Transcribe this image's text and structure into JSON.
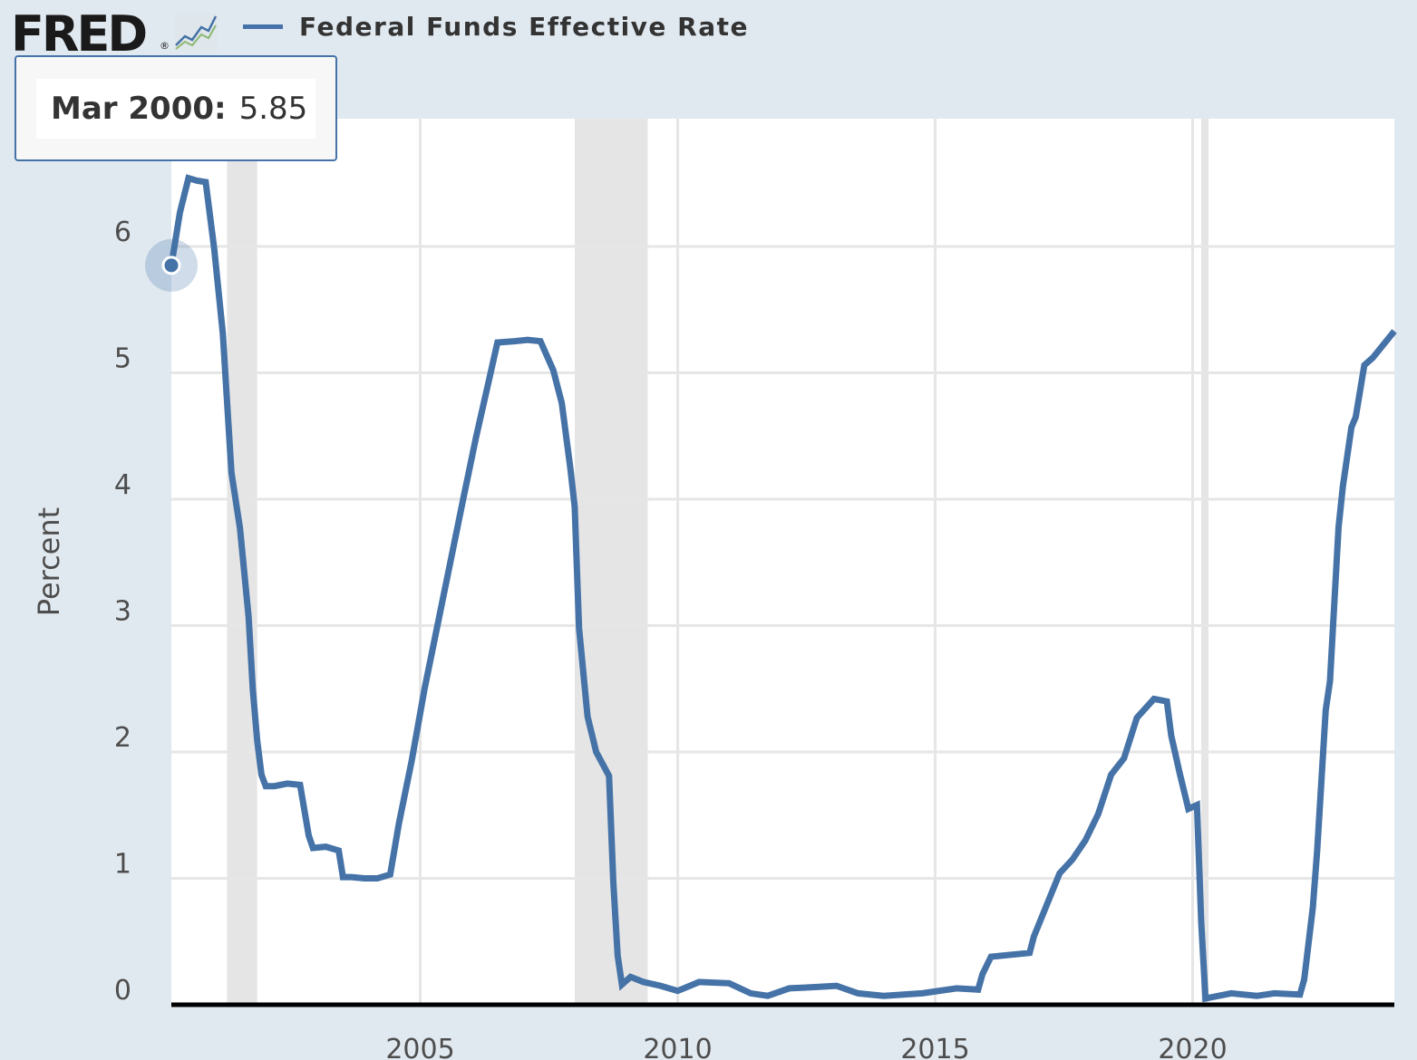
{
  "header": {
    "logo_text": "FRED",
    "logo_reg": "®",
    "logo_icon": "chart-trend-icon"
  },
  "tooltip": {
    "date": "Mar 2000:",
    "value": "5.85"
  },
  "colors": {
    "series": "#4572a7",
    "background": "#e1e9f0",
    "plot": "#ffffff",
    "recession": "#e5e5e5",
    "grid": "#e6e6e6",
    "axis": "#000000",
    "text": "#4d4d4d"
  },
  "chart_data": {
    "type": "line",
    "title": "",
    "xlabel": "",
    "ylabel": "Percent",
    "legend": {
      "position": "top-left",
      "entries": [
        "Federal Funds Effective Rate"
      ]
    },
    "grid": true,
    "x_type": "time",
    "xlim": [
      "2000-03",
      "2023-12"
    ],
    "ylim": [
      0,
      6.7
    ],
    "y_ticks": [
      0,
      1,
      2,
      3,
      4,
      5,
      6
    ],
    "x_ticks": [
      "2005",
      "2010",
      "2015",
      "2020"
    ],
    "recessions": [
      [
        "2001-04",
        "2001-11"
      ],
      [
        "2008-01",
        "2009-06"
      ],
      [
        "2020-03",
        "2020-04"
      ]
    ],
    "highlighted_point": {
      "x": "2000-03",
      "y": 5.85
    },
    "series": [
      {
        "name": "Federal Funds Effective Rate",
        "x": [
          "2000-03",
          "2000-05",
          "2000-07",
          "2000-09",
          "2000-11",
          "2001-01",
          "2001-03",
          "2001-05",
          "2001-07",
          "2001-09",
          "2001-10",
          "2001-11",
          "2001-12",
          "2002-01",
          "2002-03",
          "2002-06",
          "2002-09",
          "2002-11",
          "2002-12",
          "2003-03",
          "2003-06",
          "2003-07",
          "2003-09",
          "2003-12",
          "2004-03",
          "2004-06",
          "2004-08",
          "2004-11",
          "2005-02",
          "2005-05",
          "2005-08",
          "2005-11",
          "2006-02",
          "2006-05",
          "2006-07",
          "2006-11",
          "2007-02",
          "2007-05",
          "2007-08",
          "2007-10",
          "2007-12",
          "2008-01",
          "2008-02",
          "2008-04",
          "2008-06",
          "2008-09",
          "2008-10",
          "2008-11",
          "2008-12",
          "2009-02",
          "2009-05",
          "2009-09",
          "2010-01",
          "2010-06",
          "2011-01",
          "2011-06",
          "2011-10",
          "2012-03",
          "2012-09",
          "2013-02",
          "2013-07",
          "2014-01",
          "2014-10",
          "2015-06",
          "2015-11",
          "2015-12",
          "2016-02",
          "2016-11",
          "2016-12",
          "2017-03",
          "2017-06",
          "2017-09",
          "2017-12",
          "2018-03",
          "2018-06",
          "2018-09",
          "2018-12",
          "2019-04",
          "2019-07",
          "2019-08",
          "2019-10",
          "2019-12",
          "2020-02",
          "2020-03",
          "2020-04",
          "2020-10",
          "2021-04",
          "2021-08",
          "2022-02",
          "2022-03",
          "2022-05",
          "2022-06",
          "2022-08",
          "2022-09",
          "2022-11",
          "2022-12",
          "2023-02",
          "2023-03",
          "2023-05",
          "2023-07",
          "2023-12"
        ],
        "values": [
          5.85,
          6.27,
          6.54,
          6.52,
          6.51,
          5.98,
          5.31,
          4.21,
          3.77,
          3.07,
          2.49,
          2.09,
          1.82,
          1.73,
          1.73,
          1.75,
          1.74,
          1.34,
          1.24,
          1.25,
          1.22,
          1.01,
          1.01,
          1.0,
          1.0,
          1.03,
          1.43,
          1.93,
          2.5,
          3.0,
          3.5,
          4.0,
          4.49,
          4.94,
          5.24,
          5.25,
          5.26,
          5.25,
          5.02,
          4.76,
          4.24,
          3.94,
          2.98,
          2.28,
          2.0,
          1.81,
          0.97,
          0.39,
          0.16,
          0.22,
          0.18,
          0.15,
          0.11,
          0.18,
          0.17,
          0.09,
          0.07,
          0.13,
          0.14,
          0.15,
          0.09,
          0.07,
          0.09,
          0.13,
          0.12,
          0.24,
          0.38,
          0.41,
          0.54,
          0.79,
          1.04,
          1.15,
          1.3,
          1.51,
          1.82,
          1.95,
          2.27,
          2.42,
          2.4,
          2.13,
          1.83,
          1.55,
          1.58,
          0.65,
          0.05,
          0.09,
          0.07,
          0.09,
          0.08,
          0.2,
          0.77,
          1.21,
          2.33,
          2.56,
          3.78,
          4.1,
          4.57,
          4.65,
          5.06,
          5.12,
          5.33
        ]
      }
    ]
  }
}
